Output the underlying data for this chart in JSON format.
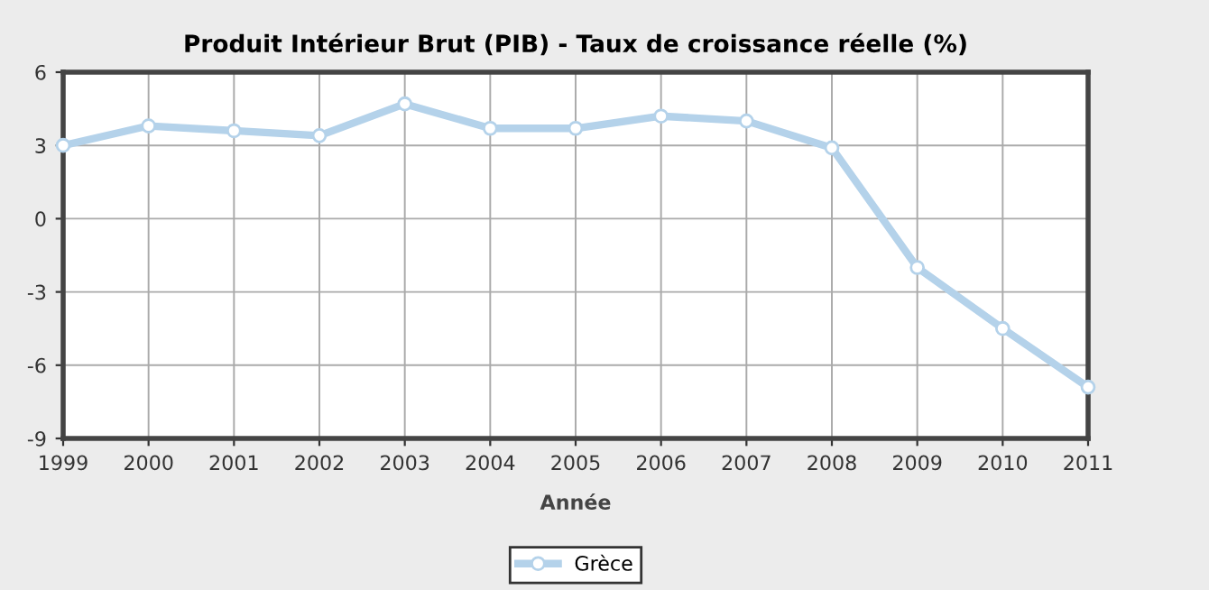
{
  "chart_data": {
    "type": "line",
    "title": "Produit Intérieur Brut (PIB) - Taux de croissance réelle (%)",
    "xlabel": "Année",
    "x": [
      1999,
      2000,
      2001,
      2002,
      2003,
      2004,
      2005,
      2006,
      2007,
      2008,
      2009,
      2010,
      2011
    ],
    "series": [
      {
        "name": "Grèce",
        "color": "#b4d2ea",
        "values": [
          3.0,
          3.8,
          3.6,
          3.4,
          4.7,
          3.7,
          3.7,
          4.2,
          4.0,
          2.9,
          -2.0,
          -4.5,
          -6.9
        ]
      }
    ],
    "xlim": [
      1999,
      2011
    ],
    "xticks": [
      1999,
      2000,
      2001,
      2002,
      2003,
      2004,
      2005,
      2006,
      2007,
      2008,
      2009,
      2010,
      2011
    ],
    "ylim": [
      -9,
      6
    ],
    "yticks": [
      -9,
      -6,
      -3,
      0,
      3,
      6
    ],
    "grid": true,
    "legend": "bottom",
    "marker": "circle",
    "line_style": "solid"
  }
}
